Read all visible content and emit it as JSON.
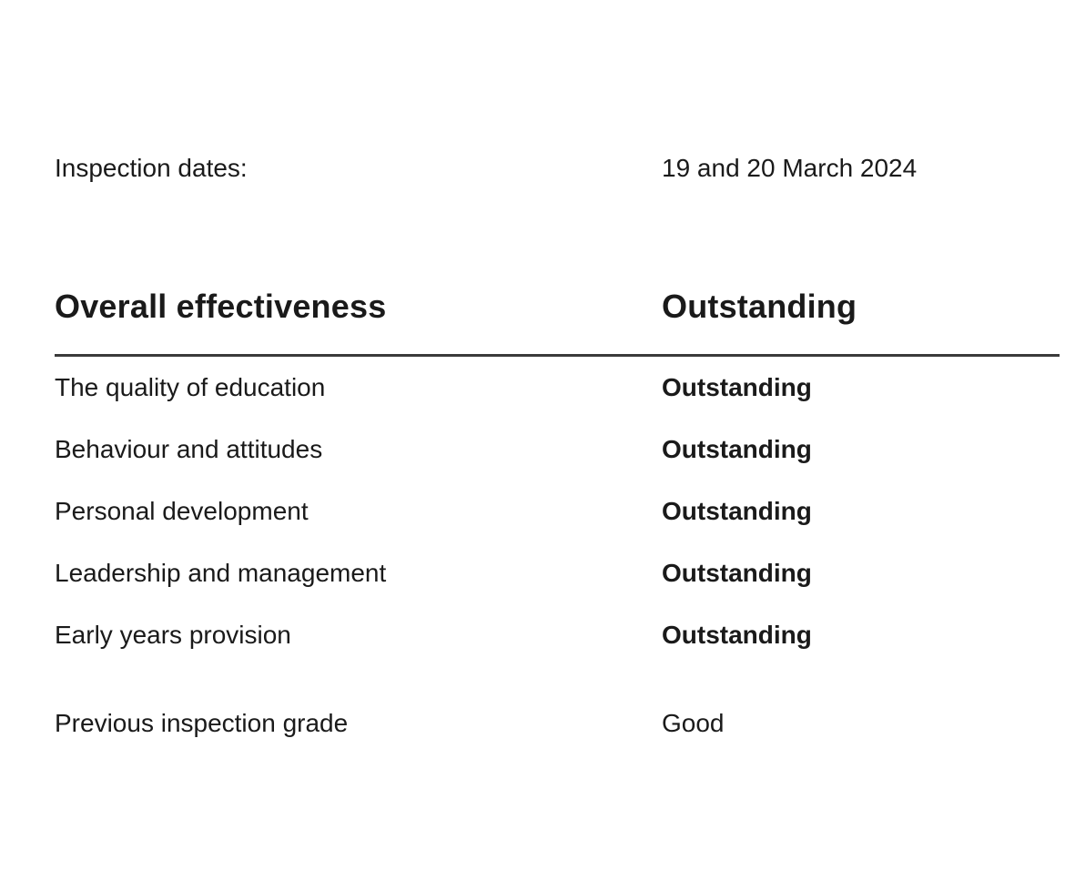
{
  "meta": {
    "inspection_dates_label": "Inspection dates:",
    "inspection_dates_value": "19 and 20 March 2024"
  },
  "ratings": {
    "header": {
      "label": "Overall effectiveness",
      "value": "Outstanding"
    },
    "rows": [
      {
        "label": "The quality of education",
        "value": "Outstanding"
      },
      {
        "label": "Behaviour and attitudes",
        "value": "Outstanding"
      },
      {
        "label": "Personal development",
        "value": "Outstanding"
      },
      {
        "label": "Leadership and management",
        "value": "Outstanding"
      },
      {
        "label": "Early years provision",
        "value": "Outstanding"
      }
    ],
    "previous": {
      "label": "Previous inspection grade",
      "value": "Good"
    }
  },
  "colors": {
    "text": "#1a1a1a",
    "rule": "#3a3a3a",
    "background": "#ffffff"
  }
}
